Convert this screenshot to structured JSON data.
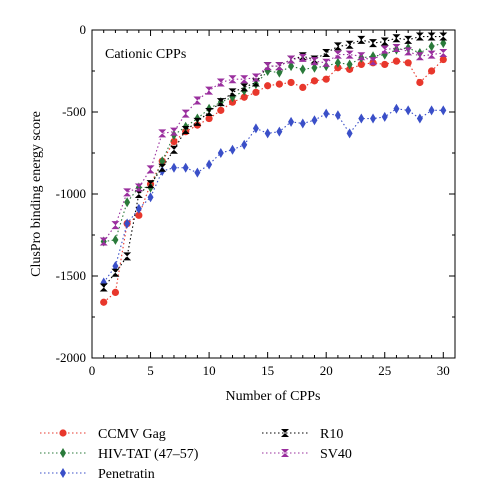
{
  "chart_data": {
    "type": "scatter",
    "title": "",
    "annotation": "Cationic CPPs",
    "xlabel": "Number of CPPs",
    "ylabel": "ClusPro binding energy score",
    "xlim": [
      0,
      31
    ],
    "ylim": [
      -2000,
      0
    ],
    "xticks": [
      0,
      5,
      10,
      15,
      20,
      25,
      30
    ],
    "yticks": [
      -2000,
      -1500,
      -1000,
      -500,
      0
    ],
    "grid": false,
    "legend_position": "below",
    "x": [
      1,
      2,
      3,
      4,
      5,
      6,
      7,
      8,
      9,
      10,
      11,
      12,
      13,
      14,
      15,
      16,
      17,
      18,
      19,
      20,
      21,
      22,
      23,
      24,
      25,
      26,
      27,
      28,
      29,
      30
    ],
    "series": [
      {
        "name": "CCMV Gag",
        "color": "#e8372c",
        "marker": "circle",
        "values": [
          -1660,
          -1600,
          -1180,
          -1130,
          -940,
          -800,
          -680,
          -620,
          -580,
          -540,
          -490,
          -440,
          -410,
          -380,
          -340,
          -330,
          -320,
          -350,
          -310,
          -300,
          -230,
          -240,
          -210,
          -200,
          -210,
          -190,
          -200,
          -320,
          -250,
          -180
        ]
      },
      {
        "name": "HIV-TAT (47–57)",
        "color": "#2a7a3a",
        "marker": "diamond",
        "values": [
          -1290,
          -1280,
          -1050,
          -960,
          -960,
          -800,
          -640,
          -590,
          -540,
          -480,
          -440,
          -410,
          -370,
          -330,
          -250,
          -260,
          -220,
          -240,
          -230,
          -220,
          -200,
          -210,
          -170,
          -160,
          -150,
          -120,
          -110,
          -140,
          -100,
          -80
        ]
      },
      {
        "name": "Penetratin",
        "color": "#3a4fc8",
        "marker": "diamond",
        "values": [
          -1540,
          -1440,
          -1180,
          -1090,
          -1020,
          -860,
          -840,
          -840,
          -870,
          -820,
          -750,
          -730,
          -700,
          -600,
          -630,
          -620,
          -560,
          -570,
          -550,
          -510,
          -520,
          -630,
          -540,
          -540,
          -530,
          -480,
          -490,
          -540,
          -490,
          -490
        ]
      },
      {
        "name": "R10",
        "color": "#000000",
        "marker": "bowtie",
        "values": [
          -1570,
          -1480,
          -1380,
          -1000,
          -940,
          -840,
          -730,
          -610,
          -560,
          -500,
          -440,
          -380,
          -350,
          -320,
          -220,
          -220,
          -180,
          -160,
          -180,
          -140,
          -100,
          -90,
          -60,
          -80,
          -70,
          -50,
          -60,
          -40,
          -40,
          -40
        ]
      },
      {
        "name": "SV40",
        "color": "#9a2f9e",
        "marker": "bowtie",
        "values": [
          -1290,
          -1190,
          -990,
          -960,
          -850,
          -630,
          -620,
          -510,
          -430,
          -370,
          -320,
          -300,
          -300,
          -290,
          -220,
          -220,
          -180,
          -170,
          -190,
          -200,
          -150,
          -150,
          -160,
          -190,
          -120,
          -110,
          -130,
          -160,
          -150,
          -140
        ]
      }
    ]
  }
}
